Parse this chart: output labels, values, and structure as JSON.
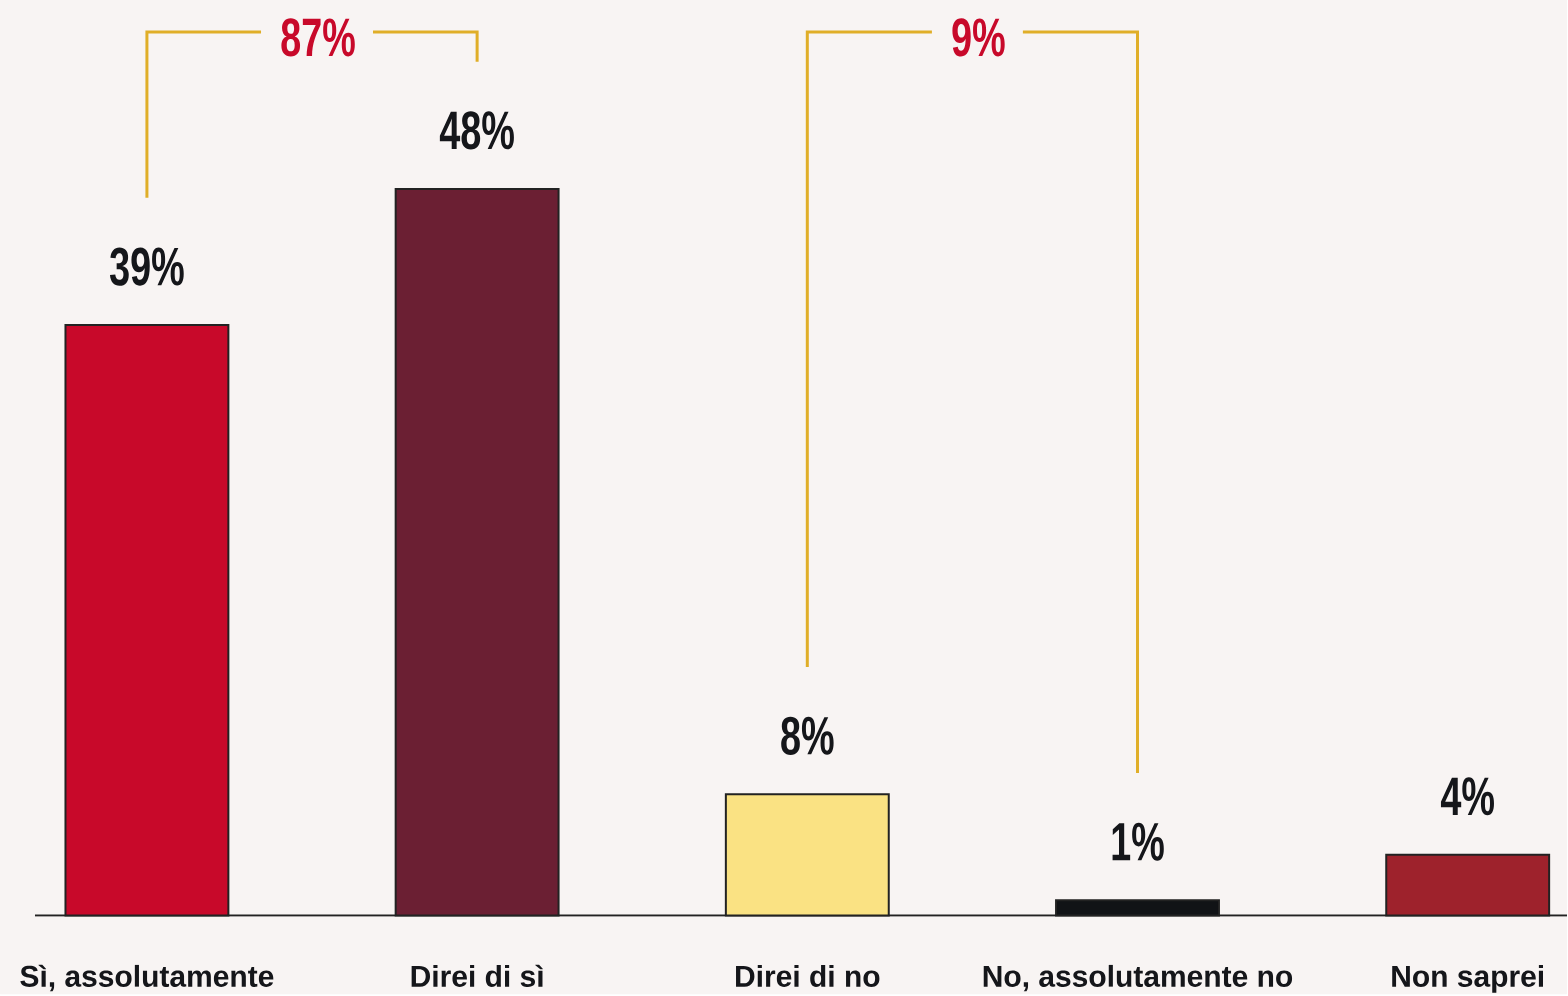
{
  "chart_data": {
    "type": "bar",
    "categories": [
      "Sì, assolutamente",
      "Direi di sì",
      "Direi di no",
      "No, assolutamente no",
      "Non saprei"
    ],
    "values": [
      39,
      48,
      8,
      1,
      4
    ],
    "colors": [
      "#c8092a",
      "#6b1f33",
      "#fae283",
      "#111316",
      "#9e222c"
    ],
    "value_labels": [
      "39%",
      "48%",
      "8%",
      "1%",
      "4%"
    ],
    "annotations": [
      "87%",
      "9%"
    ]
  }
}
